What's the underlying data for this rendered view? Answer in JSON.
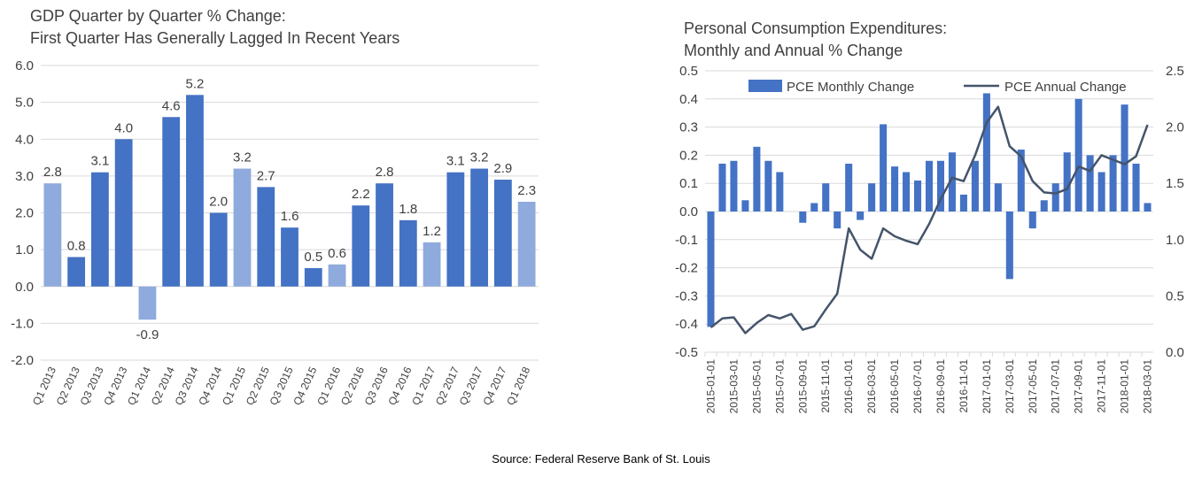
{
  "left_chart_title": [
    "GDP Quarter by Quarter % Change:",
    "First Quarter Has Generally Lagged In Recent Years"
  ],
  "right_chart_title": [
    "Personal Consumption Expenditures:",
    "Monthly and Annual % Change"
  ],
  "source": "Source: Federal Reserve Bank of St. Louis",
  "colors": {
    "dark_bar": "#4472c4",
    "light_bar": "#8faadc",
    "line": "#44546a",
    "grid": "#d9d9d9"
  },
  "chart_data": [
    {
      "type": "bar",
      "categories": [
        "Q1 2013",
        "Q2 2013",
        "Q3 2013",
        "Q4 2013",
        "Q1 2014",
        "Q2 2014",
        "Q3 2014",
        "Q4 2014",
        "Q1 2015",
        "Q2 2015",
        "Q3 2015",
        "Q4 2015",
        "Q1 2016",
        "Q2 2016",
        "Q3 2016",
        "Q4 2016",
        "Q1 2017",
        "Q2 2017",
        "Q3 2017",
        "Q4 2017",
        "Q1 2018"
      ],
      "values": [
        2.8,
        0.8,
        3.1,
        4.0,
        -0.9,
        4.6,
        5.2,
        2.0,
        3.2,
        2.7,
        1.6,
        0.5,
        0.6,
        2.2,
        2.8,
        1.8,
        1.2,
        3.1,
        3.2,
        2.9,
        2.3
      ],
      "value_labels": [
        "2.8",
        "0.8",
        "3.1",
        "4.0",
        "-0.9",
        "4.6",
        "5.2",
        "2.0",
        "3.2",
        "2.7",
        "1.6",
        "0.5",
        "0.6",
        "2.2",
        "2.8",
        "1.8",
        "1.2",
        "3.1",
        "3.2",
        "2.9",
        "2.3"
      ],
      "highlight_first_quarter": true,
      "ylim": [
        -2.0,
        6.0
      ],
      "yticks": [
        "6.0",
        "5.0",
        "4.0",
        "3.0",
        "2.0",
        "1.0",
        "0.0",
        "-1.0",
        "-2.0"
      ],
      "grid": true
    },
    {
      "type": "bar+line",
      "x": [
        "2015-01-01",
        "2015-02-01",
        "2015-03-01",
        "2015-04-01",
        "2015-05-01",
        "2015-06-01",
        "2015-07-01",
        "2015-08-01",
        "2015-09-01",
        "2015-10-01",
        "2015-11-01",
        "2015-12-01",
        "2016-01-01",
        "2016-02-01",
        "2016-03-01",
        "2016-04-01",
        "2016-05-01",
        "2016-06-01",
        "2016-07-01",
        "2016-08-01",
        "2016-09-01",
        "2016-10-01",
        "2016-11-01",
        "2016-12-01",
        "2017-01-01",
        "2017-02-01",
        "2017-03-01",
        "2017-04-01",
        "2017-05-01",
        "2017-06-01",
        "2017-07-01",
        "2017-08-01",
        "2017-09-01",
        "2017-10-01",
        "2017-11-01",
        "2017-12-01",
        "2018-01-01",
        "2018-02-01",
        "2018-03-01"
      ],
      "x_tick_labels": [
        "2015-01-01",
        "2015-03-01",
        "2015-05-01",
        "2015-07-01",
        "2015-09-01",
        "2015-11-01",
        "2016-01-01",
        "2016-03-01",
        "2016-05-01",
        "2016-07-01",
        "2016-09-01",
        "2016-11-01",
        "2017-01-01",
        "2017-03-01",
        "2017-05-01",
        "2017-07-01",
        "2017-09-01",
        "2017-11-01",
        "2018-01-01",
        "2018-03-01"
      ],
      "series": [
        {
          "name": "PCE Monthly Change",
          "kind": "bar",
          "axis": "left",
          "values": [
            -0.41,
            0.17,
            0.18,
            0.04,
            0.23,
            0.18,
            0.14,
            0.0,
            -0.04,
            0.03,
            0.1,
            -0.06,
            0.17,
            -0.03,
            0.1,
            0.31,
            0.16,
            0.14,
            0.11,
            0.18,
            0.18,
            0.21,
            0.06,
            0.18,
            0.42,
            0.1,
            -0.24,
            0.22,
            -0.06,
            0.04,
            0.1,
            0.21,
            0.4,
            0.2,
            0.14,
            0.2,
            0.38,
            0.17,
            0.03
          ]
        },
        {
          "name": "PCE Annual Change",
          "kind": "line",
          "axis": "right",
          "values": [
            0.22,
            0.3,
            0.31,
            0.17,
            0.26,
            0.33,
            0.3,
            0.34,
            0.2,
            0.23,
            0.38,
            0.52,
            1.1,
            0.91,
            0.83,
            1.1,
            1.03,
            0.99,
            0.96,
            1.14,
            1.36,
            1.55,
            1.52,
            1.75,
            2.04,
            2.18,
            1.83,
            1.74,
            1.52,
            1.42,
            1.41,
            1.45,
            1.65,
            1.61,
            1.75,
            1.71,
            1.67,
            1.74,
            2.02
          ]
        }
      ],
      "ylim_left": [
        -0.5,
        0.5
      ],
      "yticks_left": [
        "0.5",
        "0.4",
        "0.3",
        "0.2",
        "0.1",
        "0.0",
        "-0.1",
        "-0.2",
        "-0.3",
        "-0.4",
        "-0.5"
      ],
      "ylim_right": [
        0.0,
        2.5
      ],
      "yticks_right": [
        "2.5",
        "2.0",
        "1.5",
        "1.0",
        "0.5",
        "0.0"
      ],
      "legend_position": "top",
      "grid": true
    }
  ]
}
